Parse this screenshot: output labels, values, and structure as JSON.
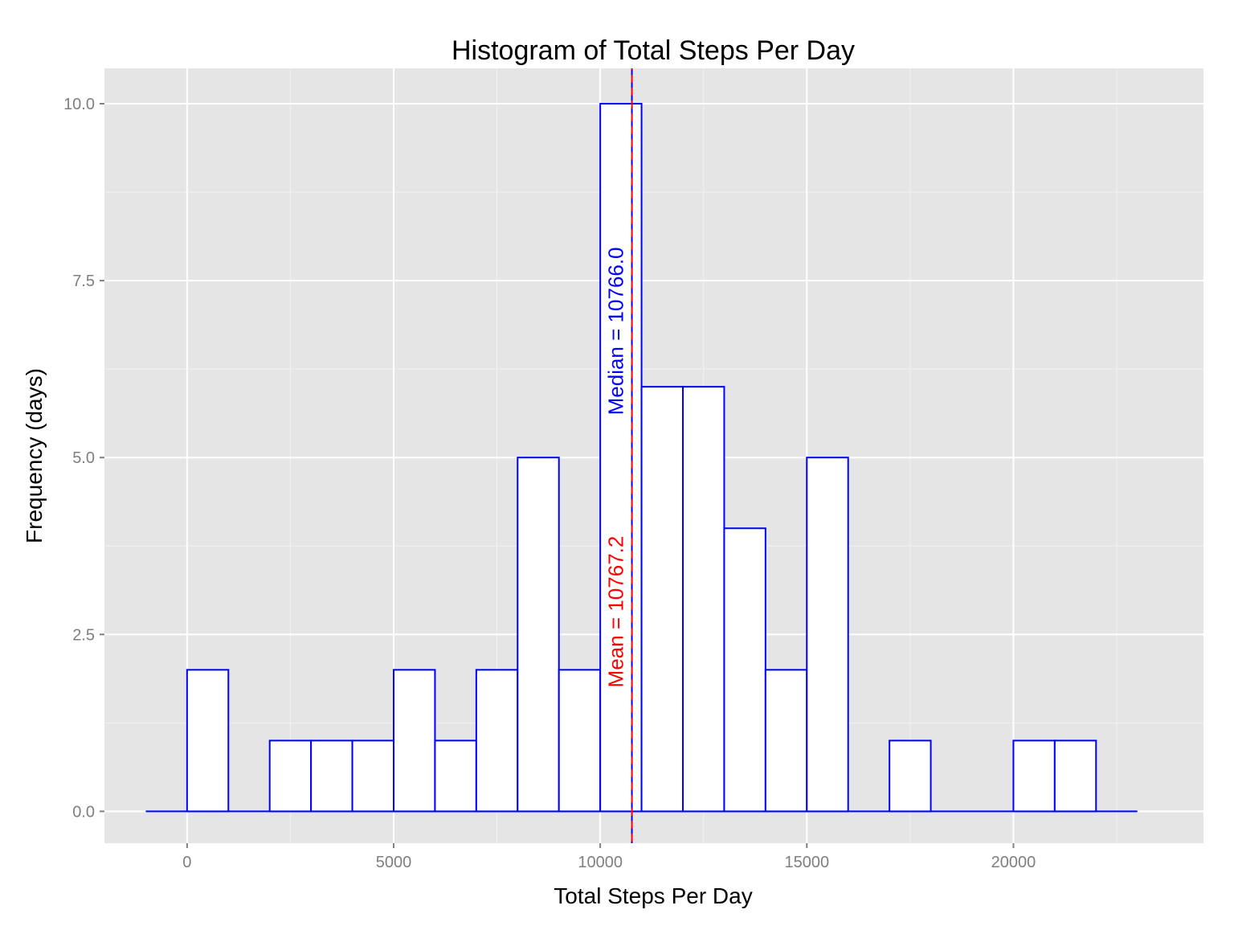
{
  "chart_data": {
    "type": "bar",
    "title": "Histogram of Total Steps Per Day",
    "xlabel": "Total Steps Per Day",
    "ylabel": "Frequency (days)",
    "xlim": [
      -2000,
      24600
    ],
    "ylim": [
      -0.45,
      10.5
    ],
    "x_ticks": [
      0,
      5000,
      10000,
      15000,
      20000
    ],
    "x_tick_labels": [
      "0",
      "5000",
      "10000",
      "15000",
      "20000"
    ],
    "y_ticks": [
      0,
      2.5,
      5,
      7.5,
      10
    ],
    "y_tick_labels": [
      "0.0",
      "2.5",
      "5.0",
      "7.5",
      "10.0"
    ],
    "bin_width": 1000,
    "bin_range": [
      -1000,
      23000
    ],
    "bins": [
      {
        "start": -1000,
        "end": 0,
        "count": 0
      },
      {
        "start": 0,
        "end": 1000,
        "count": 2
      },
      {
        "start": 1000,
        "end": 2000,
        "count": 0
      },
      {
        "start": 2000,
        "end": 3000,
        "count": 1
      },
      {
        "start": 3000,
        "end": 4000,
        "count": 1
      },
      {
        "start": 4000,
        "end": 5000,
        "count": 1
      },
      {
        "start": 5000,
        "end": 6000,
        "count": 2
      },
      {
        "start": 6000,
        "end": 7000,
        "count": 1
      },
      {
        "start": 7000,
        "end": 8000,
        "count": 2
      },
      {
        "start": 8000,
        "end": 9000,
        "count": 5
      },
      {
        "start": 9000,
        "end": 10000,
        "count": 2
      },
      {
        "start": 10000,
        "end": 11000,
        "count": 10
      },
      {
        "start": 11000,
        "end": 12000,
        "count": 6
      },
      {
        "start": 12000,
        "end": 13000,
        "count": 6
      },
      {
        "start": 13000,
        "end": 14000,
        "count": 4
      },
      {
        "start": 14000,
        "end": 15000,
        "count": 2
      },
      {
        "start": 15000,
        "end": 16000,
        "count": 5
      },
      {
        "start": 16000,
        "end": 17000,
        "count": 0
      },
      {
        "start": 17000,
        "end": 18000,
        "count": 1
      },
      {
        "start": 18000,
        "end": 19000,
        "count": 0
      },
      {
        "start": 19000,
        "end": 20000,
        "count": 0
      },
      {
        "start": 20000,
        "end": 21000,
        "count": 1
      },
      {
        "start": 21000,
        "end": 22000,
        "count": 1
      },
      {
        "start": 22000,
        "end": 23000,
        "count": 0
      }
    ],
    "annotations": [
      {
        "kind": "median",
        "value": 10766.0,
        "label": "Median = 10766.0",
        "color": "#0000ff",
        "line_style": "dashed",
        "label_y": 5.6
      },
      {
        "kind": "mean",
        "value": 10767.2,
        "label": "Mean = 10767.2",
        "color": "#ff0000",
        "line_style": "dashed",
        "label_y": 1.75
      }
    ],
    "grid": true,
    "bar_fill": "#ffffff",
    "bar_outline": "#0000ff",
    "panel_background": "#e5e5e5"
  }
}
